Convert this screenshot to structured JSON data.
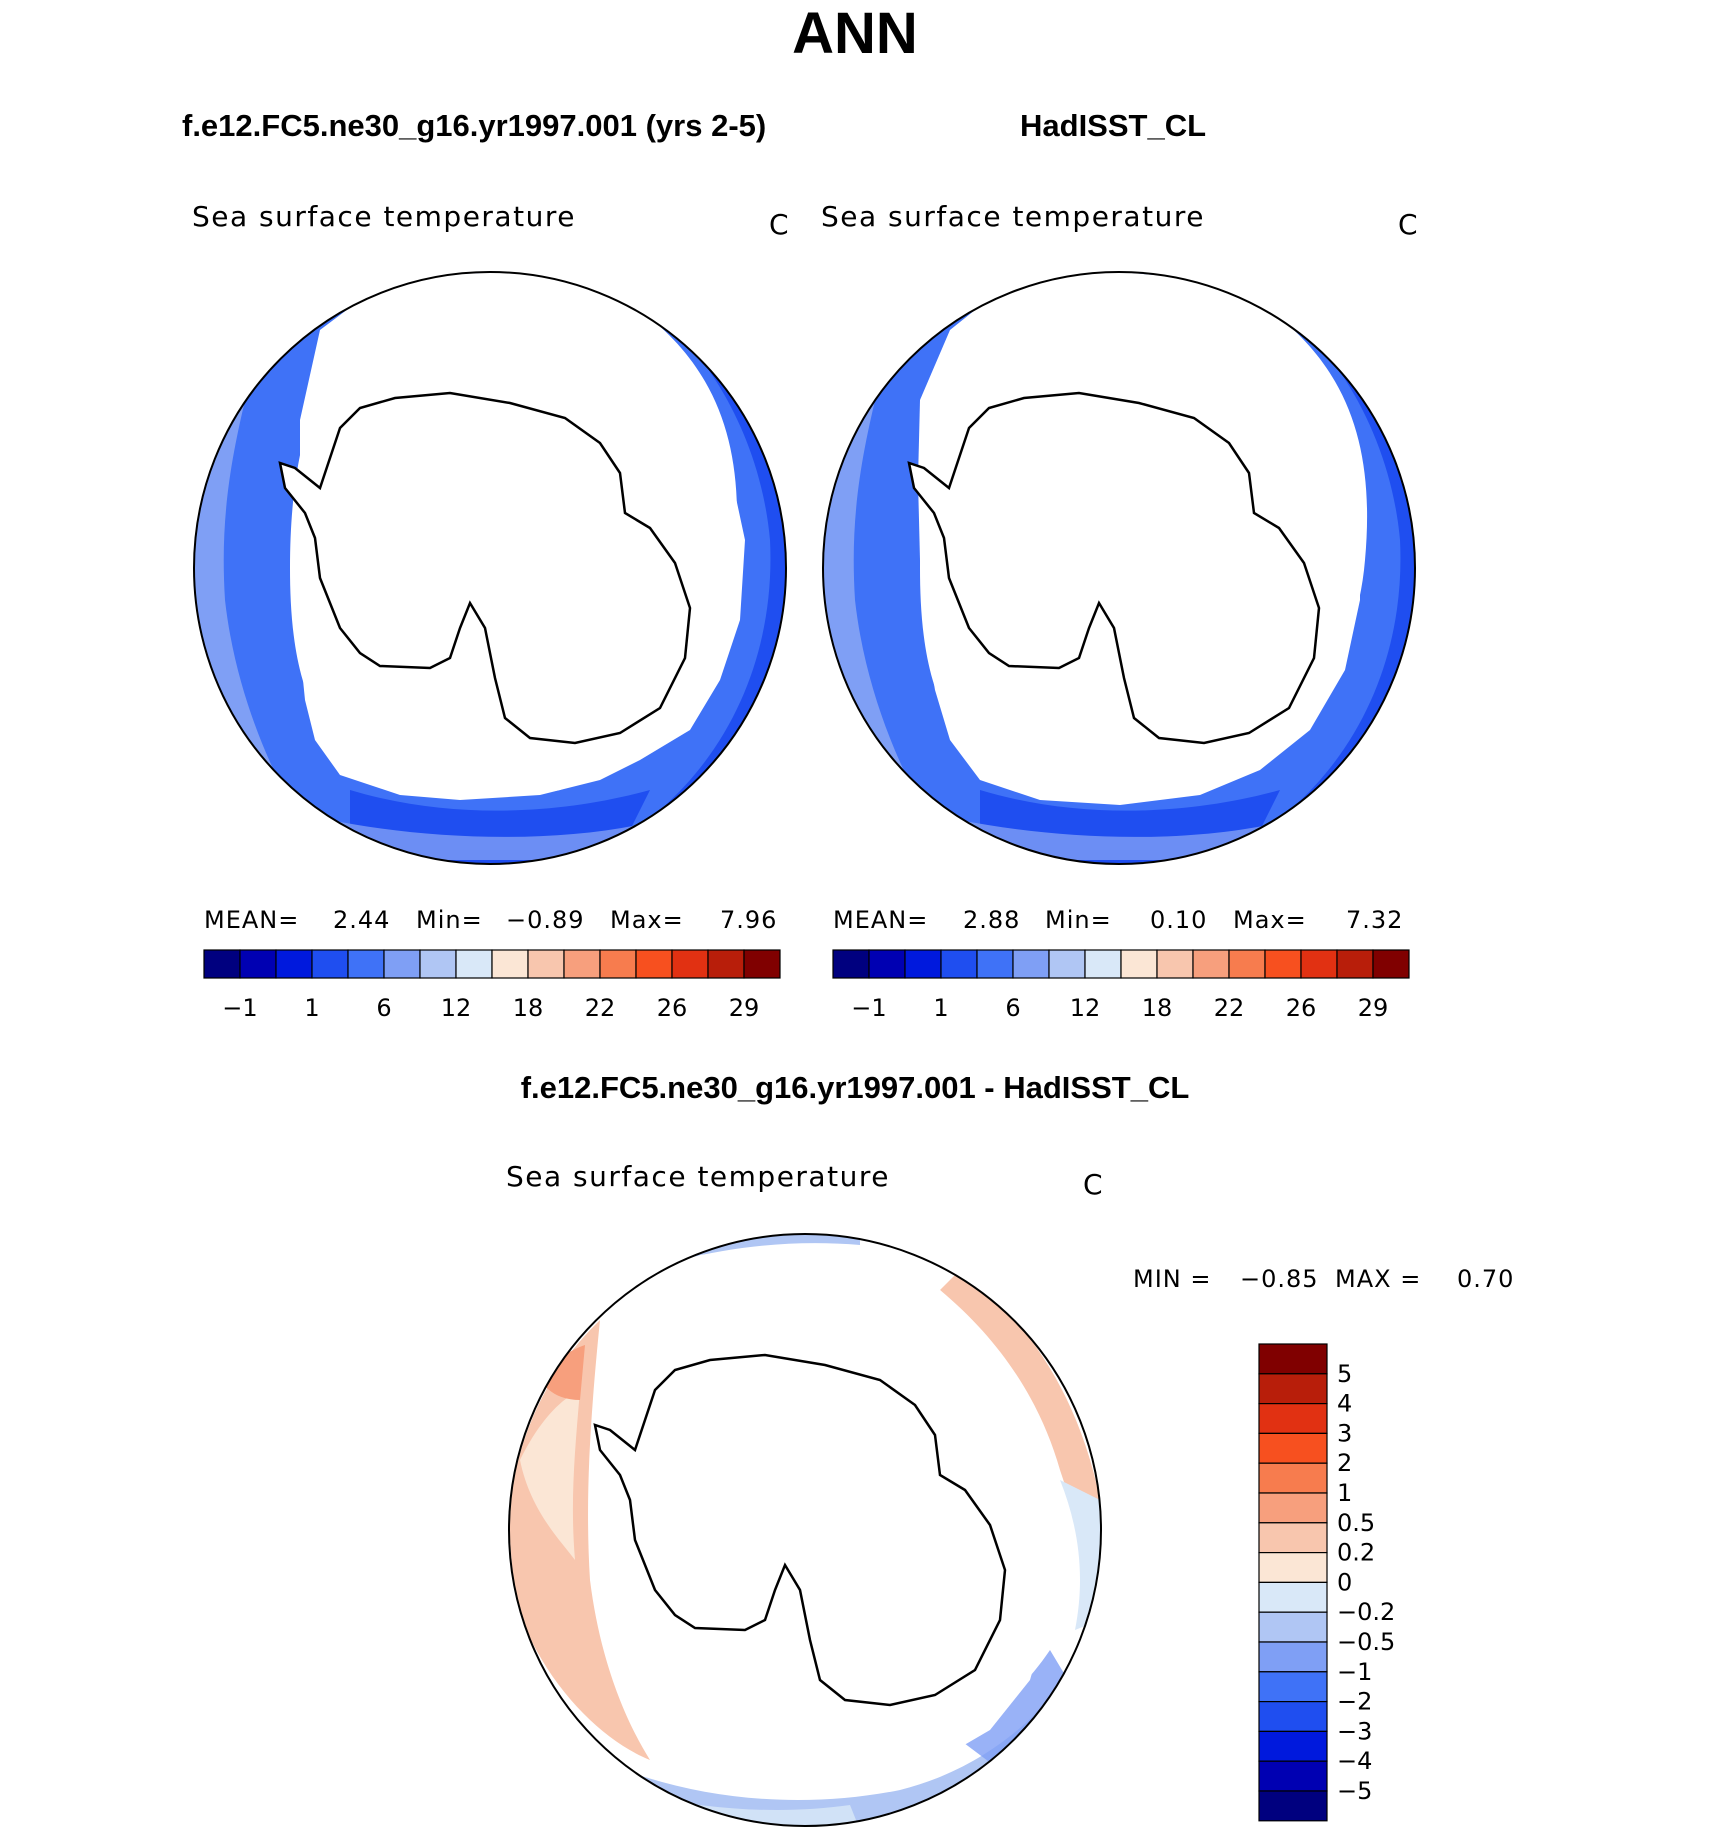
{
  "title": "ANN",
  "case_title": "f.e12.FC5.ne30_g16.yr1997.001 (yrs 2-5)",
  "ref_title": "HadISST_CL",
  "diff_title": "f.e12.FC5.ne30_g16.yr1997.001 - HadISST_CL",
  "panels": [
    {
      "variable": "Sea surface temperature",
      "units": "C",
      "stats": {
        "mean_label": "MEAN=",
        "mean": "2.44",
        "min_label": "Min=",
        "min": "−0.89",
        "max_label": "Max=",
        "max": "7.96"
      }
    },
    {
      "variable": "Sea surface temperature",
      "units": "C",
      "stats": {
        "mean_label": "MEAN=",
        "mean": "2.88",
        "min_label": "Min=",
        "min": "0.10",
        "max_label": "Max=",
        "max": "7.32"
      }
    },
    {
      "variable": "Sea surface temperature",
      "units": "C",
      "stats": {
        "min_label": "MIN =",
        "min": "−0.85",
        "max_label": "MAX =",
        "max": "0.70"
      }
    }
  ],
  "colorbar_abs": {
    "colors": [
      "#00007f",
      "#0000b2",
      "#0019dd",
      "#1f4ef0",
      "#3f72f7",
      "#7f9ff5",
      "#b0c6f4",
      "#d9e8f8",
      "#fbe6d5",
      "#f8c6ae",
      "#f79f7d",
      "#f77c4e",
      "#f7501f",
      "#e13112",
      "#b81e0a",
      "#800000"
    ],
    "tick_labels": [
      "−1",
      "1",
      "6",
      "12",
      "18",
      "22",
      "26",
      "29"
    ]
  },
  "colorbar_diff": {
    "colors": [
      "#00007f",
      "#0000b2",
      "#0019dd",
      "#1f4ef0",
      "#3f72f7",
      "#7f9ff5",
      "#b0c6f4",
      "#d9e8f8",
      "#fbe6d5",
      "#f8c6ae",
      "#f79f7d",
      "#f77c4e",
      "#f7501f",
      "#e13112",
      "#b81e0a",
      "#800000"
    ],
    "tick_labels": [
      "5",
      "4",
      "3",
      "2",
      "1",
      "0.5",
      "0.2",
      "0",
      "−0.2",
      "−0.5",
      "−1",
      "−2",
      "−3",
      "−4",
      "−5"
    ]
  }
}
